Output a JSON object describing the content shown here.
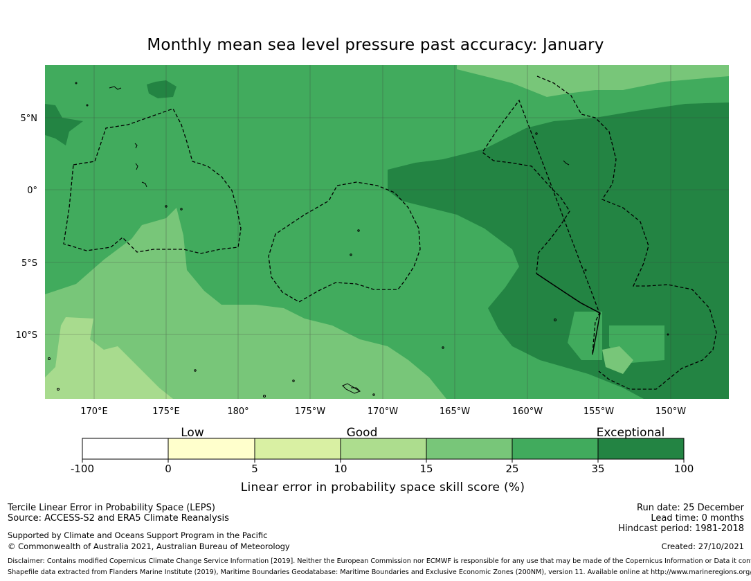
{
  "title": "Monthly mean sea level pressure past accuracy: January",
  "map": {
    "lat_labels": [
      "5°N",
      "0°",
      "5°S",
      "10°S"
    ],
    "lon_labels": [
      "170°E",
      "175°E",
      "180°",
      "175°W",
      "170°W",
      "165°W",
      "160°W",
      "155°W",
      "150°W"
    ],
    "lon_range": [
      "167°E",
      "146°W"
    ],
    "lat_range": [
      "14.5°S",
      "8.5°N"
    ],
    "colors": {
      "lt15": "#a8db8e",
      "15to25": "#78c679",
      "25to35": "#41ab5d",
      "gt35": "#238443",
      "grid": "#3a3a3a",
      "boundary": "#000000"
    }
  },
  "colorbar": {
    "categories": [
      "Low",
      "Good",
      "Exceptional"
    ],
    "ticks": [
      "-100",
      "0",
      "5",
      "10",
      "15",
      "25",
      "35",
      "100"
    ],
    "colors": [
      "#ffffff",
      "#ffffcc",
      "#d9f0a3",
      "#addd8e",
      "#78c679",
      "#41ab5d",
      "#238443"
    ],
    "label": "Linear error in probability space skill score (%)"
  },
  "footer": {
    "line1": "Tercile Linear Error in Probability Space (LEPS)",
    "line2": "Source: ACCESS-S2 and ERA5 Climate Reanalysis",
    "line3": "Supported by Climate and Oceans Support Program in the Pacific",
    "line4": "© Commonwealth of Australia 2021, Australian Bureau of Meteorology",
    "run_date": "Run date: 25 December",
    "lead_time": "Lead time: 0 months",
    "hindcast": "Hindcast period: 1981-2018",
    "created": "Created: 27/10/2021",
    "disclaimer": "Disclaimer: Contains modified Copernicus Climate Change Service Information [2019]. Neither the European Commission nor ECMWF is responsible for any use that may be made of the Copernicus Information or Data it contains.",
    "shapefile": "Shapefile data extracted from Flanders Marine Institute (2019), Maritime Boundaries Geodatabase: Maritime Boundaries and Exclusive Economic Zones (200NM), version 11. Available online at http://www.marineregions.org/."
  }
}
